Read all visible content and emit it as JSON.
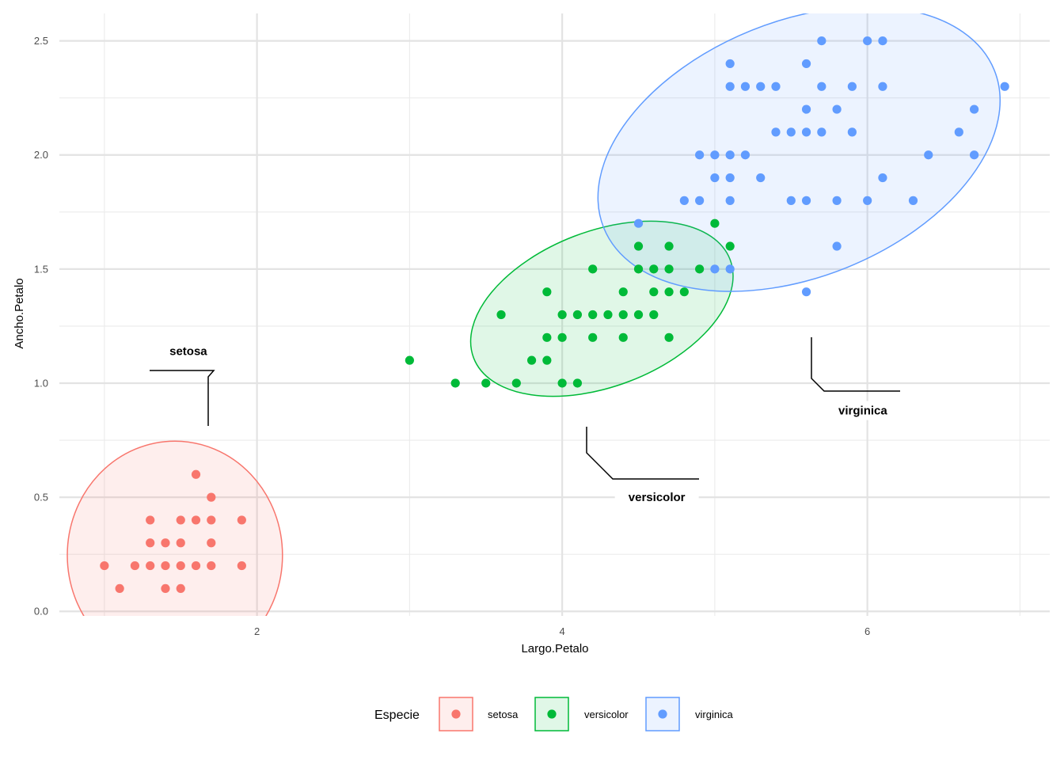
{
  "chart_data": {
    "type": "scatter",
    "title": "",
    "xlabel": "Largo.Petalo",
    "ylabel": "Ancho.Petalo",
    "xlim": [
      0.705,
      7.195
    ],
    "ylim": [
      -0.02,
      2.62
    ],
    "x_major_ticks": [
      2,
      4,
      6
    ],
    "x_tick_labels": [
      "2",
      "4",
      "6"
    ],
    "x_minor_ticks": [
      1,
      3,
      5,
      7
    ],
    "y_major_ticks": [
      0.0,
      0.5,
      1.0,
      1.5,
      2.0,
      2.5
    ],
    "y_tick_labels": [
      "0.0",
      "0.5",
      "1.0",
      "1.5",
      "2.0",
      "2.5"
    ],
    "y_minor_ticks": [
      0.25,
      0.75,
      1.25,
      1.75,
      2.25
    ],
    "grid": true,
    "legend": {
      "title": "Especie",
      "position": "bottom",
      "entries": [
        "setosa",
        "versicolor",
        "virginica"
      ]
    },
    "series": [
      {
        "name": "setosa",
        "color": "#F8766D",
        "points": [
          [
            1.0,
            0.2
          ],
          [
            1.1,
            0.1
          ],
          [
            1.2,
            0.2
          ],
          [
            1.3,
            0.2
          ],
          [
            1.3,
            0.3
          ],
          [
            1.3,
            0.4
          ],
          [
            1.4,
            0.1
          ],
          [
            1.4,
            0.2
          ],
          [
            1.4,
            0.3
          ],
          [
            1.5,
            0.1
          ],
          [
            1.5,
            0.2
          ],
          [
            1.5,
            0.3
          ],
          [
            1.5,
            0.4
          ],
          [
            1.6,
            0.2
          ],
          [
            1.6,
            0.4
          ],
          [
            1.6,
            0.6
          ],
          [
            1.7,
            0.2
          ],
          [
            1.7,
            0.3
          ],
          [
            1.7,
            0.4
          ],
          [
            1.7,
            0.5
          ],
          [
            1.9,
            0.2
          ],
          [
            1.9,
            0.4
          ]
        ],
        "ellipse": {
          "cx": 1.462,
          "cy": 0.246,
          "rx": 0.705,
          "ry": 0.5
        },
        "annotation": {
          "label": "setosa",
          "x": 1.55,
          "y": 1.14
        }
      },
      {
        "name": "versicolor",
        "color": "#00BA38",
        "points": [
          [
            3.0,
            1.1
          ],
          [
            3.3,
            1.0
          ],
          [
            3.5,
            1.0
          ],
          [
            3.6,
            1.3
          ],
          [
            3.7,
            1.0
          ],
          [
            3.8,
            1.1
          ],
          [
            3.9,
            1.1
          ],
          [
            3.9,
            1.2
          ],
          [
            3.9,
            1.4
          ],
          [
            4.0,
            1.0
          ],
          [
            4.0,
            1.2
          ],
          [
            4.0,
            1.3
          ],
          [
            4.1,
            1.0
          ],
          [
            4.1,
            1.3
          ],
          [
            4.2,
            1.2
          ],
          [
            4.2,
            1.3
          ],
          [
            4.2,
            1.5
          ],
          [
            4.3,
            1.3
          ],
          [
            4.4,
            1.2
          ],
          [
            4.4,
            1.3
          ],
          [
            4.4,
            1.4
          ],
          [
            4.5,
            1.3
          ],
          [
            4.5,
            1.5
          ],
          [
            4.5,
            1.6
          ],
          [
            4.6,
            1.3
          ],
          [
            4.6,
            1.4
          ],
          [
            4.6,
            1.5
          ],
          [
            4.7,
            1.2
          ],
          [
            4.7,
            1.4
          ],
          [
            4.7,
            1.5
          ],
          [
            4.7,
            1.6
          ],
          [
            4.8,
            1.4
          ],
          [
            4.9,
            1.5
          ],
          [
            5.0,
            1.7
          ],
          [
            5.1,
            1.6
          ]
        ],
        "ellipse": {
          "cx": 4.26,
          "cy": 1.326,
          "rx": 0.9,
          "ry": 0.34,
          "angle_deg": 21
        },
        "annotation": {
          "label": "versicolor",
          "x": 4.62,
          "y": 0.5
        }
      },
      {
        "name": "virginica",
        "color": "#619CFF",
        "points": [
          [
            4.5,
            1.7
          ],
          [
            4.8,
            1.8
          ],
          [
            4.9,
            1.8
          ],
          [
            4.9,
            2.0
          ],
          [
            5.0,
            1.5
          ],
          [
            5.0,
            1.9
          ],
          [
            5.0,
            2.0
          ],
          [
            5.1,
            1.5
          ],
          [
            5.1,
            1.8
          ],
          [
            5.1,
            1.9
          ],
          [
            5.1,
            2.0
          ],
          [
            5.1,
            2.3
          ],
          [
            5.1,
            2.4
          ],
          [
            5.2,
            2.0
          ],
          [
            5.2,
            2.3
          ],
          [
            5.3,
            1.9
          ],
          [
            5.3,
            2.3
          ],
          [
            5.4,
            2.1
          ],
          [
            5.4,
            2.3
          ],
          [
            5.5,
            1.8
          ],
          [
            5.5,
            2.1
          ],
          [
            5.6,
            1.4
          ],
          [
            5.6,
            1.8
          ],
          [
            5.6,
            2.1
          ],
          [
            5.6,
            2.2
          ],
          [
            5.6,
            2.4
          ],
          [
            5.7,
            2.1
          ],
          [
            5.7,
            2.3
          ],
          [
            5.7,
            2.5
          ],
          [
            5.8,
            1.6
          ],
          [
            5.8,
            1.8
          ],
          [
            5.8,
            2.2
          ],
          [
            5.9,
            2.1
          ],
          [
            5.9,
            2.3
          ],
          [
            6.0,
            1.8
          ],
          [
            6.0,
            2.5
          ],
          [
            6.1,
            1.9
          ],
          [
            6.1,
            2.3
          ],
          [
            6.1,
            2.5
          ],
          [
            6.3,
            1.8
          ],
          [
            6.4,
            2.0
          ],
          [
            6.6,
            2.1
          ],
          [
            6.7,
            2.0
          ],
          [
            6.7,
            2.2
          ],
          [
            6.9,
            2.3
          ]
        ],
        "ellipse": {
          "cx": 5.552,
          "cy": 2.026,
          "rx": 1.38,
          "ry": 0.56,
          "angle_deg": 22
        },
        "annotation": {
          "label": "virginica",
          "x": 5.97,
          "y": 0.88
        }
      }
    ]
  }
}
